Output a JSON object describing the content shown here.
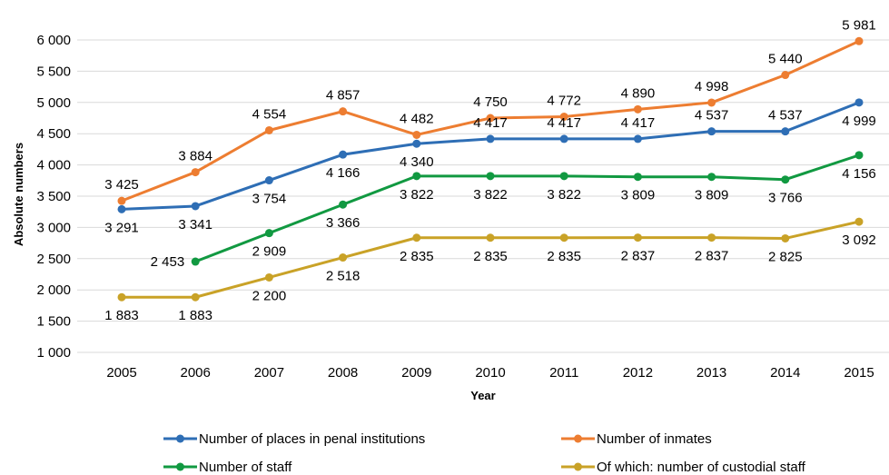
{
  "chart_data": {
    "type": "line",
    "title": "",
    "xlabel": "Year",
    "ylabel": "Absolute numbers",
    "ylim": [
      1000,
      6000
    ],
    "yticks": [
      1000,
      1500,
      2000,
      2500,
      3000,
      3500,
      4000,
      4500,
      5000,
      5500,
      6000
    ],
    "ytick_labels": [
      "1 000",
      "1 500",
      "2 000",
      "2 500",
      "3 000",
      "3 500",
      "4 000",
      "4 500",
      "5 000",
      "5 500",
      "6 000"
    ],
    "grid": true,
    "legend_position": "bottom",
    "x": [
      "2005",
      "2006",
      "2007",
      "2008",
      "2009",
      "2010",
      "2011",
      "2012",
      "2013",
      "2014",
      "2015"
    ],
    "series": [
      {
        "name": "Number of places in penal institutions",
        "color": "#2e6eb5",
        "values": [
          3291,
          3341,
          3754,
          4166,
          4340,
          4417,
          4417,
          4417,
          4537,
          4537,
          4999
        ],
        "labels": [
          "3 291",
          "3 341",
          "3 754",
          "4 166",
          "4 340",
          "4 417",
          "4 417",
          "4 417",
          "4 537",
          "4 537",
          "4 999"
        ],
        "label_pos": [
          "below",
          "below",
          "below",
          "below",
          "below",
          "above",
          "above",
          "above",
          "above",
          "above",
          "below"
        ]
      },
      {
        "name": "Number of inmates",
        "color": "#ed7d31",
        "values": [
          3425,
          3884,
          4554,
          4857,
          4482,
          4750,
          4772,
          4890,
          4998,
          5440,
          5981
        ],
        "labels": [
          "3 425",
          "3 884",
          "4 554",
          "4 857",
          "4 482",
          "4 750",
          "4 772",
          "4 890",
          "4 998",
          "5 440",
          "5 981"
        ],
        "label_pos": [
          "above",
          "above",
          "above",
          "above",
          "above",
          "above",
          "above",
          "above",
          "above",
          "above",
          "above"
        ]
      },
      {
        "name": "Number of staff",
        "color": "#119941",
        "values": [
          null,
          2453,
          2909,
          3366,
          3822,
          3822,
          3822,
          3809,
          3809,
          3766,
          4156
        ],
        "labels": [
          "",
          "2 453",
          "2 909",
          "3 366",
          "3 822",
          "3 822",
          "3 822",
          "3 809",
          "3 809",
          "3 766",
          "4 156"
        ],
        "label_pos": [
          "below",
          "left",
          "below",
          "below",
          "below",
          "below",
          "below",
          "below",
          "below",
          "below",
          "below"
        ]
      },
      {
        "name": "Of which: number of custodial staff",
        "color": "#c9a227",
        "values": [
          1883,
          1883,
          2200,
          2518,
          2835,
          2835,
          2835,
          2837,
          2837,
          2825,
          3092
        ],
        "labels": [
          "1 883",
          "1 883",
          "2 200",
          "2 518",
          "2 835",
          "2 835",
          "2 835",
          "2 837",
          "2 837",
          "2 825",
          "3 092"
        ],
        "label_pos": [
          "below",
          "below",
          "below",
          "below",
          "below",
          "below",
          "below",
          "below",
          "below",
          "below",
          "below"
        ]
      }
    ]
  }
}
